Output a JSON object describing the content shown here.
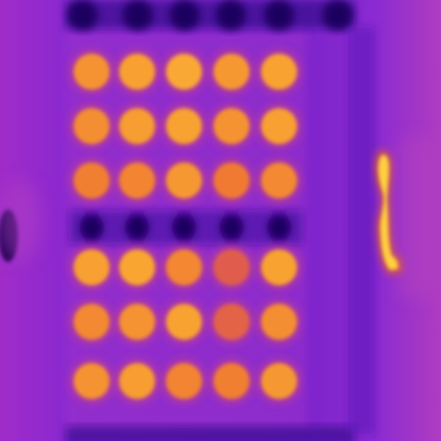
{
  "image": {
    "kind": "thermal-infrared-photo",
    "palette": {
      "cold": "#2a0a7a",
      "cool": "#7a20d0",
      "warm": "#b030c0",
      "mid": "#d0406a",
      "hot": "#f07a30",
      "hotter": "#f8a030",
      "hottest": "#ffe040"
    },
    "grid": {
      "rows": 6,
      "cols": 5,
      "spot_temperature_levels": [
        [
          0.8,
          0.85,
          0.9,
          0.82,
          0.86
        ],
        [
          0.78,
          0.84,
          0.86,
          0.8,
          0.85
        ],
        [
          0.72,
          0.74,
          0.82,
          0.7,
          0.76
        ],
        [
          0.85,
          0.88,
          0.75,
          0.65,
          0.86
        ],
        [
          0.76,
          0.8,
          0.86,
          0.66,
          0.78
        ],
        [
          0.8,
          0.84,
          0.74,
          0.72,
          0.82
        ]
      ]
    },
    "hot_strip_level": 1.0
  }
}
